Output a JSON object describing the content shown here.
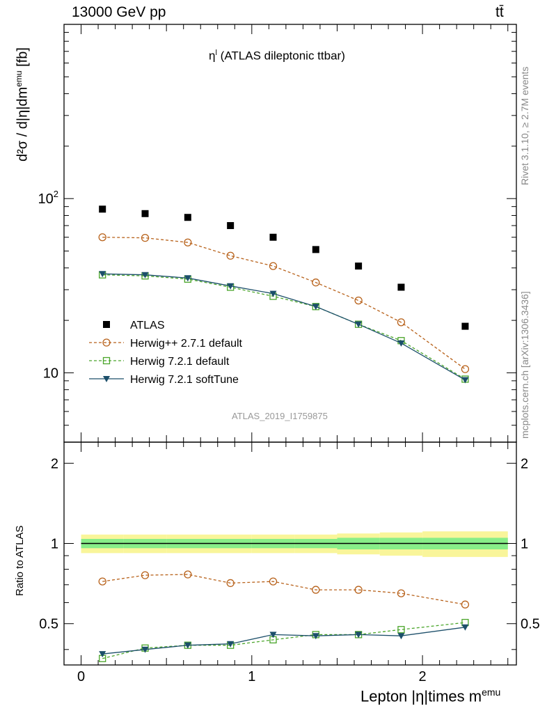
{
  "header": {
    "left": "13000 GeV pp",
    "right": "tt̄"
  },
  "title_main": "η",
  "title_sup": "l",
  "title_rest": "(ATLAS dileptonic ttbar)",
  "analysis_id": "ATLAS_2019_I1759875",
  "side_text": {
    "rivet": "Rivet 3.1.10, ≥ 2.7M events",
    "mcplots": "mcplots.cern.ch [arXiv:1306.3436]"
  },
  "axes": {
    "xlabel": "Lepton |η|times m",
    "xlabel_sup": "emu",
    "ylabel_top": "d²σ / d|η|dm",
    "ylabel_top_sup": "emu",
    "ylabel_top_unit": "[fb]",
    "ylabel_bottom": "Ratio to ATLAS"
  },
  "ticks": {
    "main_y": [
      {
        "value": 10,
        "base": "10",
        "exp": ""
      },
      {
        "value": 100,
        "base": "10",
        "exp": "2"
      }
    ],
    "ratio_y": [
      "0.5",
      "1",
      "2"
    ],
    "x": [
      "0",
      "1",
      "2"
    ]
  },
  "colors": {
    "atlas": "#000000",
    "herwigpp": "#b8621b",
    "herwig_default": "#4aa52a",
    "herwig_soft": "#1c4f6a",
    "band_outer": "#f9f59a",
    "band_inner": "#88ee88"
  },
  "chart_data": {
    "type": "scatter",
    "x": [
      0.125,
      0.375,
      0.625,
      0.875,
      1.125,
      1.375,
      1.625,
      1.875,
      2.25
    ],
    "bin_edges": [
      0,
      0.25,
      0.5,
      0.75,
      1.0,
      1.25,
      1.5,
      1.75,
      2.0,
      2.5
    ],
    "xlim": [
      -0.1,
      2.55
    ],
    "main_ylim": [
      4,
      1000
    ],
    "main_yscale": "log",
    "ratio_ylim": [
      0.35,
      2.4
    ],
    "ratio_yscale": "log",
    "legend_position": "lower-left",
    "series": [
      {
        "name": "ATLAS",
        "key": "atlas",
        "marker": "square-filled",
        "line": "none",
        "values": [
          87,
          82,
          78,
          70,
          60,
          51,
          41,
          31,
          18.5
        ]
      },
      {
        "name": "Herwig++ 2.7.1 default",
        "key": "herwigpp",
        "marker": "circle-open",
        "line": "dashed",
        "values": [
          60,
          59.5,
          56,
          47,
          41,
          33,
          26,
          19.5,
          10.5
        ],
        "ratio": [
          0.72,
          0.76,
          0.765,
          0.71,
          0.72,
          0.67,
          0.67,
          0.65,
          0.59
        ]
      },
      {
        "name": "Herwig 7.2.1 default",
        "key": "herwig_default",
        "marker": "square-open",
        "line": "dashed",
        "values": [
          36.5,
          36,
          34.5,
          31,
          27.5,
          24,
          19,
          15.3,
          9.2
        ],
        "ratio": [
          0.37,
          0.405,
          0.415,
          0.415,
          0.435,
          0.455,
          0.455,
          0.475,
          0.505
        ]
      },
      {
        "name": "Herwig 7.2.1 softTune",
        "key": "herwig_soft",
        "marker": "triangle-down-filled",
        "line": "solid",
        "values": [
          37,
          36.5,
          35,
          31.5,
          28.5,
          24,
          19,
          14.8,
          9.1
        ],
        "ratio": [
          0.385,
          0.4,
          0.415,
          0.42,
          0.455,
          0.45,
          0.455,
          0.45,
          0.485
        ]
      }
    ],
    "ratio_band": {
      "inner": [
        0.04,
        0.04,
        0.04,
        0.04,
        0.04,
        0.04,
        0.05,
        0.05,
        0.05
      ],
      "outer": [
        0.08,
        0.08,
        0.08,
        0.08,
        0.08,
        0.08,
        0.09,
        0.1,
        0.11
      ]
    }
  }
}
